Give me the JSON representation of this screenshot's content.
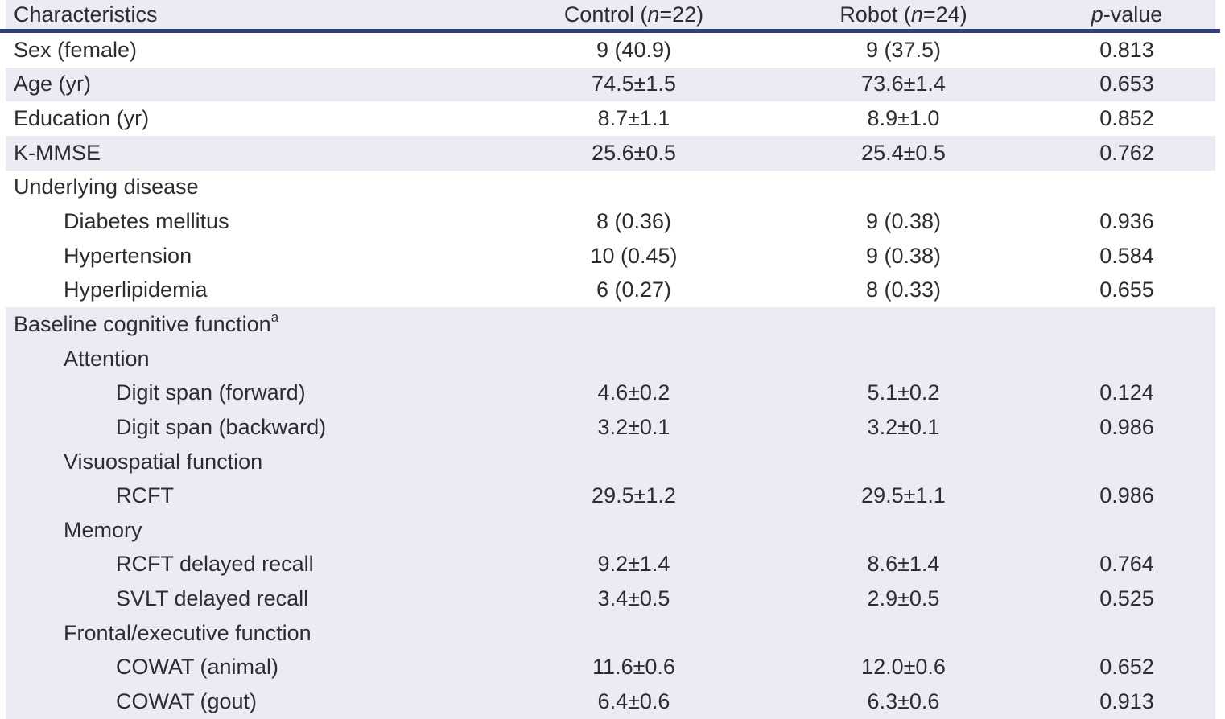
{
  "table": {
    "colors": {
      "accent_rule_navy": "#2F3E7C",
      "row_shade_lavender": "#ECEBF4",
      "text": "#2d2c31"
    },
    "header": {
      "characteristics": "Characteristics",
      "control": {
        "pre": "Control (",
        "it": "n",
        "post": "=22)"
      },
      "robot": {
        "pre": "Robot (",
        "it": "n",
        "post": "=24)"
      },
      "pvalue": {
        "it": "p",
        "post": "-value"
      }
    },
    "rows": [
      {
        "label": "Sex (female)",
        "control": "9 (40.9)",
        "robot": "9 (37.5)",
        "p": "0.813"
      },
      {
        "label": "Age (yr)",
        "control": "74.5±1.5",
        "robot": "73.6±1.4",
        "p": "0.653"
      },
      {
        "label": "Education (yr)",
        "control": "8.7±1.1",
        "robot": "8.9±1.0",
        "p": "0.852"
      },
      {
        "label": "K-MMSE",
        "control": "25.6±0.5",
        "robot": "25.4±0.5",
        "p": "0.762"
      },
      {
        "label": "Underlying disease",
        "control": "",
        "robot": "",
        "p": ""
      },
      {
        "label": "Diabetes mellitus",
        "control": "8 (0.36)",
        "robot": "9 (0.38)",
        "p": "0.936"
      },
      {
        "label": "Hypertension",
        "control": "10 (0.45)",
        "robot": "9 (0.38)",
        "p": "0.584"
      },
      {
        "label": "Hyperlipidemia",
        "control": "6 (0.27)",
        "robot": "8 (0.33)",
        "p": "0.655"
      },
      {
        "label": "Baseline cognitive function",
        "sup": "a",
        "control": "",
        "robot": "",
        "p": ""
      },
      {
        "label": "Attention",
        "control": "",
        "robot": "",
        "p": ""
      },
      {
        "label": "Digit span (forward)",
        "control": "4.6±0.2",
        "robot": "5.1±0.2",
        "p": "0.124"
      },
      {
        "label": "Digit span (backward)",
        "control": "3.2±0.1",
        "robot": "3.2±0.1",
        "p": "0.986"
      },
      {
        "label": "Visuospatial function",
        "control": "",
        "robot": "",
        "p": ""
      },
      {
        "label": "RCFT",
        "control": "29.5±1.2",
        "robot": "29.5±1.1",
        "p": "0.986"
      },
      {
        "label": "Memory",
        "control": "",
        "robot": "",
        "p": ""
      },
      {
        "label": "RCFT delayed recall",
        "control": "9.2±1.4",
        "robot": "8.6±1.4",
        "p": "0.764"
      },
      {
        "label": "SVLT delayed recall",
        "control": "3.4±0.5",
        "robot": "2.9±0.5",
        "p": "0.525"
      },
      {
        "label": "Frontal/executive function",
        "control": "",
        "robot": "",
        "p": ""
      },
      {
        "label": "COWAT (animal)",
        "control": "11.6±0.6",
        "robot": "12.0±0.6",
        "p": "0.652"
      },
      {
        "label": "COWAT (gout)",
        "control": "6.4±0.6",
        "robot": "6.3±0.6",
        "p": "0.913"
      }
    ]
  }
}
